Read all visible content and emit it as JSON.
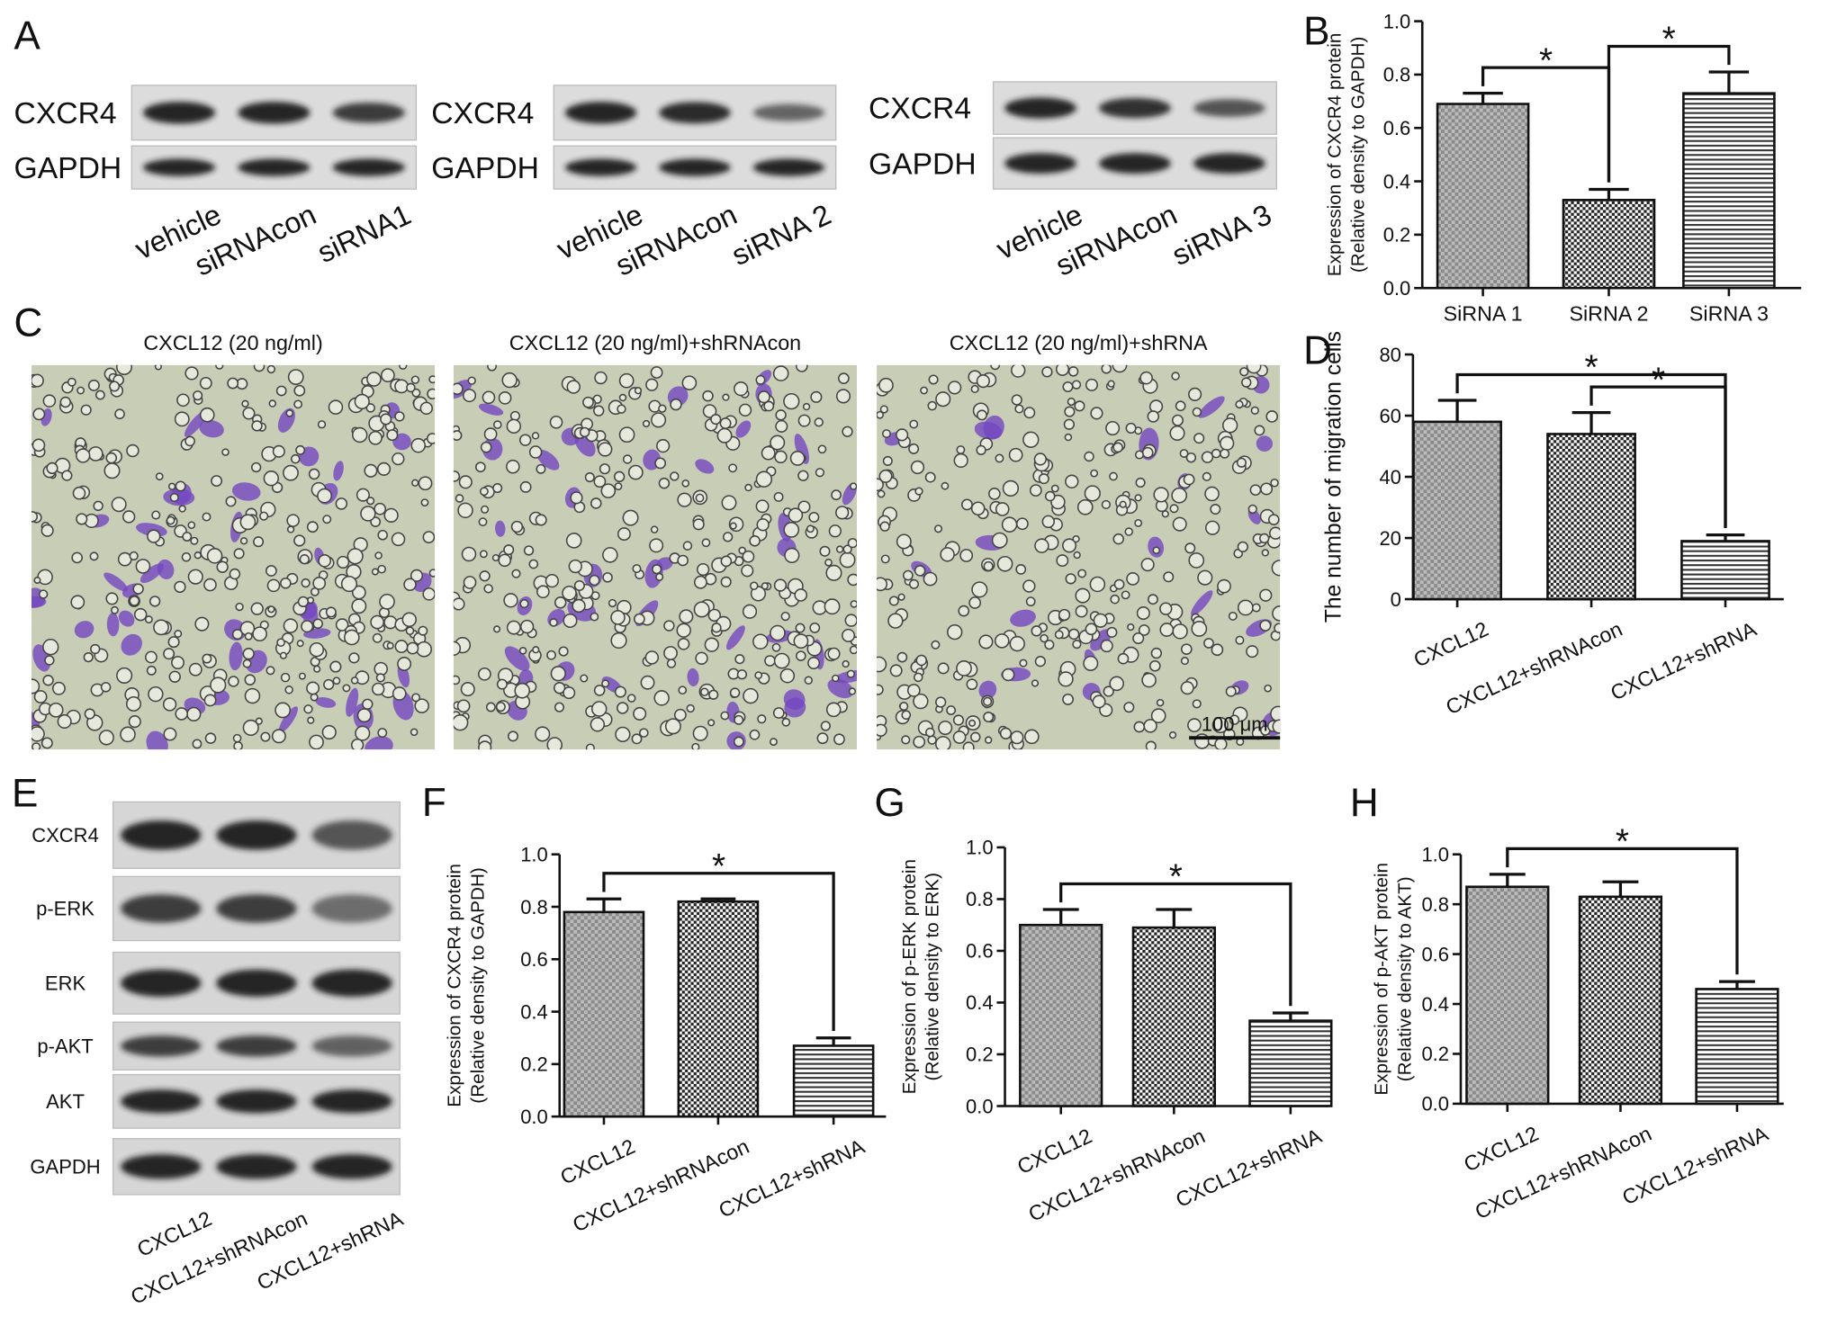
{
  "chart_data": [
    {
      "type": "bar",
      "panel": "B",
      "ylabel": [
        "Expression of CXCR4 protein",
        "(Relative density to GAPDH)"
      ],
      "categories": [
        "SiRNA 1",
        "SiRNA 2",
        "SiRNA 3"
      ],
      "values": [
        0.69,
        0.33,
        0.73
      ],
      "errors": [
        0.04,
        0.04,
        0.08
      ],
      "ylim": [
        0,
        1.0
      ],
      "yticks": [
        {
          "value": 0,
          "label": "0.0"
        },
        0.2,
        0.4,
        0.6,
        0.8,
        {
          "value": 1.0,
          "label": "1.0"
        }
      ],
      "annotations": [
        {
          "text": "*",
          "between": [
            "SiRNA 1",
            "SiRNA 2"
          ]
        },
        {
          "text": "*",
          "between": [
            "SiRNA 2",
            "SiRNA 3"
          ]
        }
      ]
    },
    {
      "type": "bar",
      "panel": "D",
      "ylabel": [
        "The number of migration cells"
      ],
      "categories": [
        "CXCL12",
        "CXCL12+shRNAcon",
        "CXCL12+shRNA"
      ],
      "values": [
        58,
        54,
        19
      ],
      "errors": [
        7,
        7,
        2
      ],
      "ylim": [
        0,
        80
      ],
      "yticks": [
        0,
        20,
        40,
        60,
        80
      ],
      "annotations": [
        {
          "text": "*",
          "between": [
            "CXCL12",
            "CXCL12+shRNA"
          ]
        },
        {
          "text": "*",
          "between": [
            "CXCL12+shRNAcon",
            "CXCL12+shRNA"
          ]
        }
      ]
    },
    {
      "type": "bar",
      "panel": "F",
      "ylabel": [
        "Expression of CXCR4 protein",
        "(Relative density to GAPDH)"
      ],
      "categories": [
        "CXCL12",
        "CXCL12+shRNAcon",
        "CXCL12+shRNA"
      ],
      "values": [
        0.78,
        0.82,
        0.27
      ],
      "errors": [
        0.05,
        0.01,
        0.03
      ],
      "ylim": [
        0,
        1.0
      ],
      "yticks": [
        {
          "value": 0,
          "label": "0.0"
        },
        0.2,
        0.4,
        0.6,
        0.8,
        {
          "value": 1.0,
          "label": "1.0"
        }
      ],
      "annotations": [
        {
          "text": "*",
          "between": [
            "CXCL12",
            "CXCL12+shRNA"
          ]
        }
      ]
    },
    {
      "type": "bar",
      "panel": "G",
      "ylabel": [
        "Expression of p-ERK protein",
        "(Relative density to ERK)"
      ],
      "categories": [
        "CXCL12",
        "CXCL12+shRNAcon",
        "CXCL12+shRNA"
      ],
      "values": [
        0.7,
        0.69,
        0.33
      ],
      "errors": [
        0.06,
        0.07,
        0.03
      ],
      "ylim": [
        0,
        1.0
      ],
      "yticks": [
        {
          "value": 0,
          "label": "0.0"
        },
        0.2,
        0.4,
        0.6,
        0.8,
        {
          "value": 1.0,
          "label": "1.0"
        }
      ],
      "annotations": [
        {
          "text": "*",
          "between": [
            "CXCL12",
            "CXCL12+shRNA"
          ]
        }
      ]
    },
    {
      "type": "bar",
      "panel": "H",
      "ylabel": [
        "Expression of p-AKT protein",
        "(Relative density to AKT)"
      ],
      "categories": [
        "CXCL12",
        "CXCL12+shRNAcon",
        "CXCL12+shRNA"
      ],
      "values": [
        0.87,
        0.83,
        0.46
      ],
      "errors": [
        0.05,
        0.06,
        0.03
      ],
      "ylim": [
        0,
        1.0
      ],
      "yticks": [
        {
          "value": 0,
          "label": "0.0"
        },
        0.2,
        0.4,
        0.6,
        0.8,
        {
          "value": 1.0,
          "label": "1.0"
        }
      ],
      "annotations": [
        {
          "text": "*",
          "between": [
            "CXCL12",
            "CXCL12+shRNA"
          ]
        }
      ]
    }
  ],
  "panel_a": {
    "label": "A",
    "blots": [
      {
        "rows": [
          "CXCR4",
          "GAPDH"
        ],
        "lanes": [
          "vehicle",
          "siRNAcon",
          "siRNA1"
        ]
      },
      {
        "rows": [
          "CXCR4",
          "GAPDH"
        ],
        "lanes": [
          "vehicle",
          "siRNAcon",
          "siRNA 2"
        ]
      },
      {
        "rows": [
          "CXCR4",
          "GAPDH"
        ],
        "lanes": [
          "vehicle",
          "siRNAcon",
          "siRNA 3"
        ]
      }
    ]
  },
  "panel_c": {
    "label": "C",
    "captions": [
      "CXCL12 (20 ng/ml)",
      "CXCL12 (20 ng/ml)+shRNAcon",
      "CXCL12 (20 ng/ml)+shRNA"
    ],
    "scale_bar": "100 μm"
  },
  "panel_e": {
    "label": "E",
    "rows": [
      "CXCR4",
      "p-ERK",
      "ERK",
      "p-AKT",
      "AKT",
      "GAPDH"
    ],
    "lanes": [
      "CXCL12",
      "CXCL12+shRNAcon",
      "CXCL12+shRNA"
    ]
  }
}
